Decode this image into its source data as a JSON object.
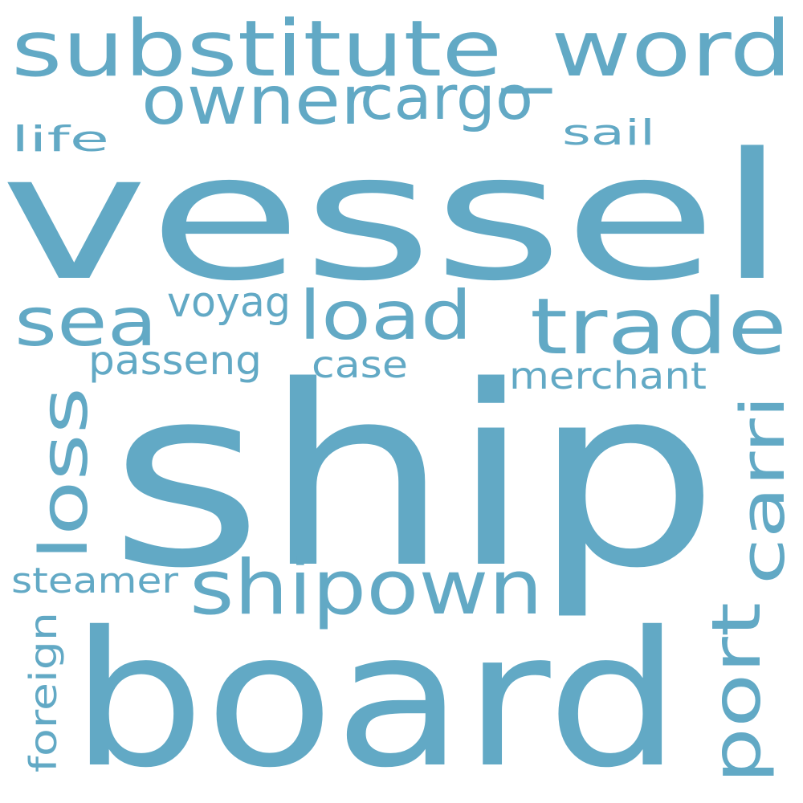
{
  "word_cloud": {
    "color": "#62a9c5",
    "background": "#ffffff",
    "words": [
      {
        "id": "vessel",
        "text": "vessel",
        "vertical": false
      },
      {
        "id": "ship",
        "text": "ship",
        "vertical": false
      },
      {
        "id": "board",
        "text": "board",
        "vertical": false
      },
      {
        "id": "substitute-word",
        "text": "substitute_word",
        "vertical": false
      },
      {
        "id": "owner",
        "text": "owner",
        "vertical": false
      },
      {
        "id": "cargo",
        "text": "cargo",
        "vertical": false
      },
      {
        "id": "life",
        "text": "life",
        "vertical": false
      },
      {
        "id": "sail",
        "text": "sail",
        "vertical": false
      },
      {
        "id": "sea",
        "text": "sea",
        "vertical": false
      },
      {
        "id": "voyag",
        "text": "voyag",
        "vertical": false
      },
      {
        "id": "load",
        "text": "load",
        "vertical": false
      },
      {
        "id": "trade",
        "text": "trade",
        "vertical": false
      },
      {
        "id": "passeng",
        "text": "passeng",
        "vertical": false
      },
      {
        "id": "case",
        "text": "case",
        "vertical": false
      },
      {
        "id": "merchant",
        "text": "merchant",
        "vertical": false
      },
      {
        "id": "loss",
        "text": "loss",
        "vertical": true
      },
      {
        "id": "carri",
        "text": "carri",
        "vertical": true
      },
      {
        "id": "shipown",
        "text": "shipown",
        "vertical": false
      },
      {
        "id": "steamer",
        "text": "steamer",
        "vertical": false
      },
      {
        "id": "port",
        "text": "port",
        "vertical": true
      },
      {
        "id": "foreign",
        "text": "foreign",
        "vertical": true
      }
    ]
  }
}
